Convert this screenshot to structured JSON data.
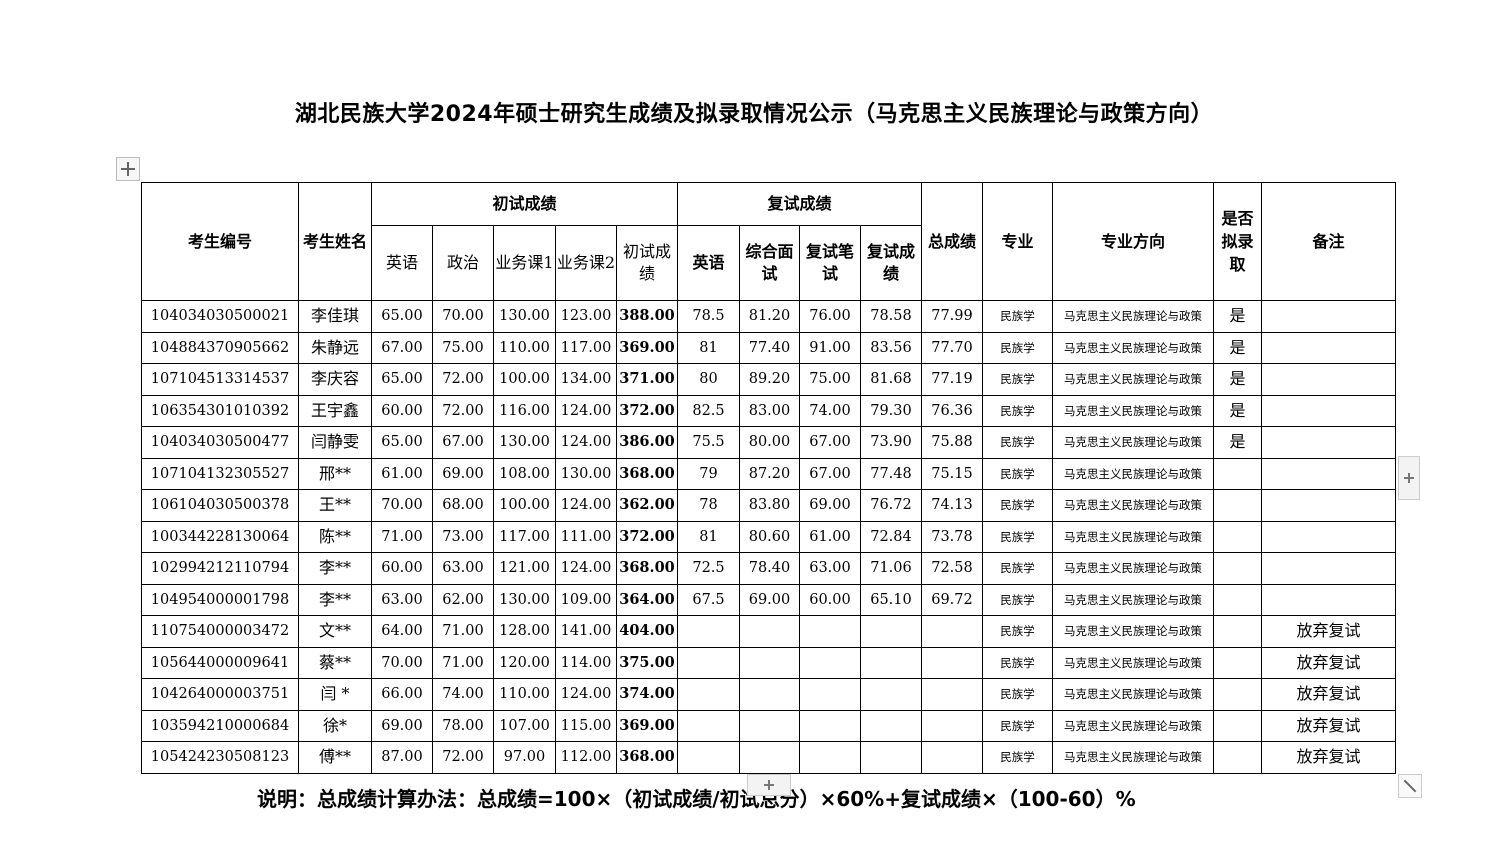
{
  "title": "湖北民族大学2024年硕士研究生成绩及拟录取情况公示（马克思主义民族理论与政策方向）",
  "headers": {
    "id": "考生编号",
    "name": "考生姓名",
    "prelim_group": "初试成绩",
    "prelim": [
      "英语",
      "政治",
      "业务课1",
      "业务课2",
      "初试成绩"
    ],
    "retest_group": "复试成绩",
    "retest": [
      "英语",
      "综合面试",
      "复试笔试",
      "复试成绩"
    ],
    "total": "总成绩",
    "major": "专业",
    "direction": "专业方向",
    "admit": "是否拟录取",
    "remark": "备注"
  },
  "rows": [
    [
      "104034030500021",
      "李佳琪",
      "65.00",
      "70.00",
      "130.00",
      "123.00",
      "388.00",
      "78.5",
      "81.20",
      "76.00",
      "78.58",
      "77.99",
      "民族学",
      "马克思主义民族理论与政策",
      "是",
      ""
    ],
    [
      "104884370905662",
      "朱静远",
      "67.00",
      "75.00",
      "110.00",
      "117.00",
      "369.00",
      "81",
      "77.40",
      "91.00",
      "83.56",
      "77.70",
      "民族学",
      "马克思主义民族理论与政策",
      "是",
      ""
    ],
    [
      "107104513314537",
      "李庆容",
      "65.00",
      "72.00",
      "100.00",
      "134.00",
      "371.00",
      "80",
      "89.20",
      "75.00",
      "81.68",
      "77.19",
      "民族学",
      "马克思主义民族理论与政策",
      "是",
      ""
    ],
    [
      "106354301010392",
      "王宇鑫",
      "60.00",
      "72.00",
      "116.00",
      "124.00",
      "372.00",
      "82.5",
      "83.00",
      "74.00",
      "79.30",
      "76.36",
      "民族学",
      "马克思主义民族理论与政策",
      "是",
      ""
    ],
    [
      "104034030500477",
      "闫静雯",
      "65.00",
      "67.00",
      "130.00",
      "124.00",
      "386.00",
      "75.5",
      "80.00",
      "67.00",
      "73.90",
      "75.88",
      "民族学",
      "马克思主义民族理论与政策",
      "是",
      ""
    ],
    [
      "107104132305527",
      "邢**",
      "61.00",
      "69.00",
      "108.00",
      "130.00",
      "368.00",
      "79",
      "87.20",
      "67.00",
      "77.48",
      "75.15",
      "民族学",
      "马克思主义民族理论与政策",
      "",
      ""
    ],
    [
      "106104030500378",
      "王**",
      "70.00",
      "68.00",
      "100.00",
      "124.00",
      "362.00",
      "78",
      "83.80",
      "69.00",
      "76.72",
      "74.13",
      "民族学",
      "马克思主义民族理论与政策",
      "",
      ""
    ],
    [
      "100344228130064",
      "陈**",
      "71.00",
      "73.00",
      "117.00",
      "111.00",
      "372.00",
      "81",
      "80.60",
      "61.00",
      "72.84",
      "73.78",
      "民族学",
      "马克思主义民族理论与政策",
      "",
      ""
    ],
    [
      "102994212110794",
      "李**",
      "60.00",
      "63.00",
      "121.00",
      "124.00",
      "368.00",
      "72.5",
      "78.40",
      "63.00",
      "71.06",
      "72.58",
      "民族学",
      "马克思主义民族理论与政策",
      "",
      ""
    ],
    [
      "104954000001798",
      "李**",
      "63.00",
      "62.00",
      "130.00",
      "109.00",
      "364.00",
      "67.5",
      "69.00",
      "60.00",
      "65.10",
      "69.72",
      "民族学",
      "马克思主义民族理论与政策",
      "",
      ""
    ],
    [
      "110754000003472",
      "文**",
      "64.00",
      "71.00",
      "128.00",
      "141.00",
      "404.00",
      "",
      "",
      "",
      "",
      "",
      "民族学",
      "马克思主义民族理论与政策",
      "",
      "放弃复试"
    ],
    [
      "105644000009641",
      "蔡**",
      "70.00",
      "71.00",
      "120.00",
      "114.00",
      "375.00",
      "",
      "",
      "",
      "",
      "",
      "民族学",
      "马克思主义民族理论与政策",
      "",
      "放弃复试"
    ],
    [
      "104264000003751",
      "闫 *",
      "66.00",
      "74.00",
      "110.00",
      "124.00",
      "374.00",
      "",
      "",
      "",
      "",
      "",
      "民族学",
      "马克思主义民族理论与政策",
      "",
      "放弃复试"
    ],
    [
      "103594210000684",
      "徐*",
      "69.00",
      "78.00",
      "107.00",
      "115.00",
      "369.00",
      "",
      "",
      "",
      "",
      "",
      "民族学",
      "马克思主义民族理论与政策",
      "",
      "放弃复试"
    ],
    [
      "105424230508123",
      "傅**",
      "87.00",
      "72.00",
      "97.00",
      "112.00",
      "368.00",
      "",
      "",
      "",
      "",
      "",
      "民族学",
      "马克思主义民族理论与政策",
      "",
      "放弃复试"
    ]
  ],
  "note": "说明：总成绩计算办法：总成绩=100×（初试成绩/初试总分）×60%+复试成绩×（100-60）%",
  "icons": {
    "move": "move-handle-icon",
    "add_row": "plus-icon",
    "add_col": "plus-icon",
    "resize": "resize-icon"
  }
}
